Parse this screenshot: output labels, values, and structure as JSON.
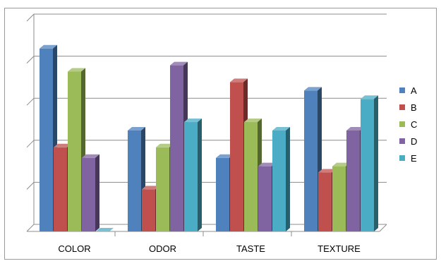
{
  "chart_data": {
    "type": "bar",
    "style": "3d-clustered-column",
    "categories": [
      "COLOR",
      "ODOR",
      "TASTE",
      "TEXTURE"
    ],
    "series": [
      {
        "name": "A",
        "color": "#4F81BD",
        "values": [
          4.35,
          2.4,
          1.75,
          3.35
        ]
      },
      {
        "name": "B",
        "color": "#C0504D",
        "values": [
          2.0,
          1.0,
          3.55,
          1.4
        ]
      },
      {
        "name": "C",
        "color": "#9BBB59",
        "values": [
          3.8,
          2.0,
          2.6,
          1.55
        ]
      },
      {
        "name": "D",
        "color": "#8064A2",
        "values": [
          1.75,
          3.95,
          1.55,
          2.4
        ]
      },
      {
        "name": "E",
        "color": "#4BACC6",
        "values": [
          0.0,
          2.6,
          2.4,
          3.15
        ]
      }
    ],
    "ylim": [
      0,
      5
    ],
    "y_tick_labels_shown": false,
    "grid": true,
    "legend": "right"
  }
}
